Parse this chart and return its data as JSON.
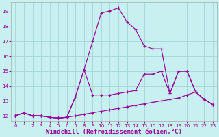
{
  "background_color": "#c8f0f0",
  "grid_color": "#a8d8d8",
  "line_color": "#990099",
  "xlabel": "Windchill (Refroidissement éolien,°C)",
  "xlabel_fontsize": 6.5,
  "yticks": [
    12,
    13,
    14,
    15,
    16,
    17,
    18,
    19
  ],
  "xticks": [
    0,
    1,
    2,
    3,
    4,
    5,
    6,
    7,
    8,
    9,
    10,
    11,
    12,
    13,
    14,
    15,
    16,
    17,
    18,
    19,
    20,
    21,
    22,
    23
  ],
  "xlim": [
    -0.5,
    23.5
  ],
  "ylim": [
    11.65,
    19.65
  ],
  "series": [
    {
      "x": [
        0,
        1,
        2,
        3,
        4,
        5,
        6,
        7,
        8,
        9,
        10,
        11,
        12,
        13,
        14,
        15,
        16,
        17,
        18,
        19,
        20,
        21,
        22,
        23
      ],
      "y": [
        12.0,
        12.2,
        12.0,
        12.0,
        11.9,
        11.85,
        11.9,
        12.0,
        12.1,
        12.2,
        12.3,
        12.4,
        12.5,
        12.6,
        12.7,
        12.8,
        12.9,
        13.0,
        13.1,
        13.2,
        13.4,
        13.6,
        13.1,
        12.75
      ]
    },
    {
      "x": [
        0,
        1,
        2,
        3,
        4,
        5,
        6,
        7,
        8,
        9,
        10,
        11,
        12,
        13,
        14,
        15,
        16,
        17,
        18,
        19,
        20,
        21,
        22,
        23
      ],
      "y": [
        12.0,
        12.2,
        12.0,
        12.0,
        11.9,
        11.85,
        11.9,
        13.3,
        15.1,
        17.0,
        18.9,
        19.05,
        19.25,
        18.3,
        17.8,
        16.7,
        16.5,
        16.5,
        13.5,
        15.0,
        15.0,
        13.6,
        13.1,
        12.75
      ]
    },
    {
      "x": [
        0,
        1,
        2,
        3,
        4,
        5,
        6,
        7,
        8,
        9,
        10,
        11,
        12,
        13,
        14,
        15,
        16,
        17,
        18,
        19,
        20,
        21,
        22,
        23
      ],
      "y": [
        12.0,
        12.2,
        12.0,
        12.0,
        11.9,
        11.85,
        11.9,
        13.3,
        15.1,
        13.4,
        13.4,
        13.4,
        13.5,
        13.6,
        13.7,
        14.8,
        14.8,
        15.0,
        13.5,
        15.0,
        15.0,
        13.6,
        13.1,
        12.75
      ]
    }
  ]
}
